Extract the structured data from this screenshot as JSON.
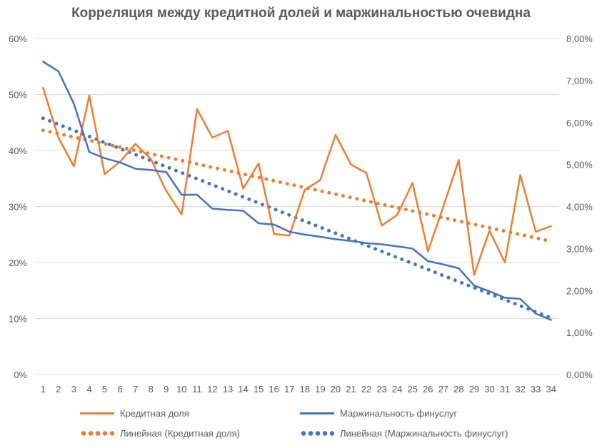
{
  "chart_data": {
    "type": "line",
    "title": "Корреляция между кредитной долей и маржинальностью очевидна",
    "categories": [
      "1",
      "2",
      "3",
      "4",
      "5",
      "6",
      "7",
      "8",
      "9",
      "10",
      "11",
      "12",
      "13",
      "14",
      "15",
      "16",
      "17",
      "18",
      "19",
      "20",
      "21",
      "22",
      "23",
      "24",
      "25",
      "26",
      "27",
      "28",
      "29",
      "30",
      "31",
      "32",
      "33",
      "34"
    ],
    "y_left": {
      "ylim": [
        0,
        60
      ],
      "ticks": [
        "0%",
        "10%",
        "20%",
        "30%",
        "40%",
        "50%",
        "60%"
      ]
    },
    "y_right": {
      "ylim": [
        0,
        8
      ],
      "ticks": [
        "0,00%",
        "1,00%",
        "2,00%",
        "3,00%",
        "4,00%",
        "5,00%",
        "6,00%",
        "7,00%",
        "8,00%"
      ]
    },
    "grid": true,
    "legend_position": "bottom",
    "series": [
      {
        "name": "Кредитная доля",
        "axis": "left",
        "style": "solid",
        "color": "#ED7D31",
        "values": [
          51.2,
          42.3,
          37.2,
          49.8,
          35.8,
          38.0,
          41.2,
          38.5,
          32.8,
          28.6,
          47.4,
          42.3,
          43.5,
          33.2,
          37.7,
          25.1,
          24.8,
          33.0,
          34.7,
          42.8,
          37.5,
          36.0,
          26.6,
          28.5,
          34.2,
          22.0,
          30.0,
          38.3,
          17.8,
          25.7,
          20.0,
          35.6,
          25.5,
          26.5
        ]
      },
      {
        "name": "Маржинальность финуслуг",
        "axis": "right",
        "style": "solid",
        "color": "#4472C4",
        "values": [
          7.45,
          7.22,
          6.45,
          5.3,
          5.15,
          5.05,
          4.9,
          4.87,
          4.82,
          4.28,
          4.28,
          3.95,
          3.92,
          3.9,
          3.6,
          3.57,
          3.4,
          3.33,
          3.28,
          3.22,
          3.18,
          3.13,
          3.1,
          3.05,
          3.0,
          2.7,
          2.62,
          2.53,
          2.12,
          1.98,
          1.83,
          1.8,
          1.45,
          1.3
        ]
      },
      {
        "name": "Линейная (Кредитная доля)",
        "axis": "left",
        "style": "dotted",
        "color": "#ED7D31",
        "values": [
          43.6,
          43.0,
          42.4,
          41.8,
          41.2,
          40.6,
          40.0,
          39.4,
          38.8,
          38.2,
          37.6,
          37.0,
          36.4,
          35.8,
          35.2,
          34.6,
          34.0,
          33.4,
          32.8,
          32.2,
          31.6,
          31.0,
          30.4,
          29.8,
          29.2,
          28.6,
          28.0,
          27.4,
          26.8,
          26.2,
          25.6,
          25.0,
          24.4,
          23.8
        ]
      },
      {
        "name": "Линейная (Маржинальность финуслуг)",
        "axis": "right",
        "style": "dotted",
        "color": "#4472C4",
        "values": [
          6.1,
          5.956,
          5.812,
          5.668,
          5.524,
          5.38,
          5.236,
          5.092,
          4.948,
          4.804,
          4.66,
          4.516,
          4.372,
          4.228,
          4.084,
          3.94,
          3.796,
          3.652,
          3.508,
          3.364,
          3.22,
          3.076,
          2.932,
          2.788,
          2.644,
          2.5,
          2.356,
          2.212,
          2.068,
          1.924,
          1.78,
          1.636,
          1.492,
          1.348
        ]
      }
    ]
  }
}
